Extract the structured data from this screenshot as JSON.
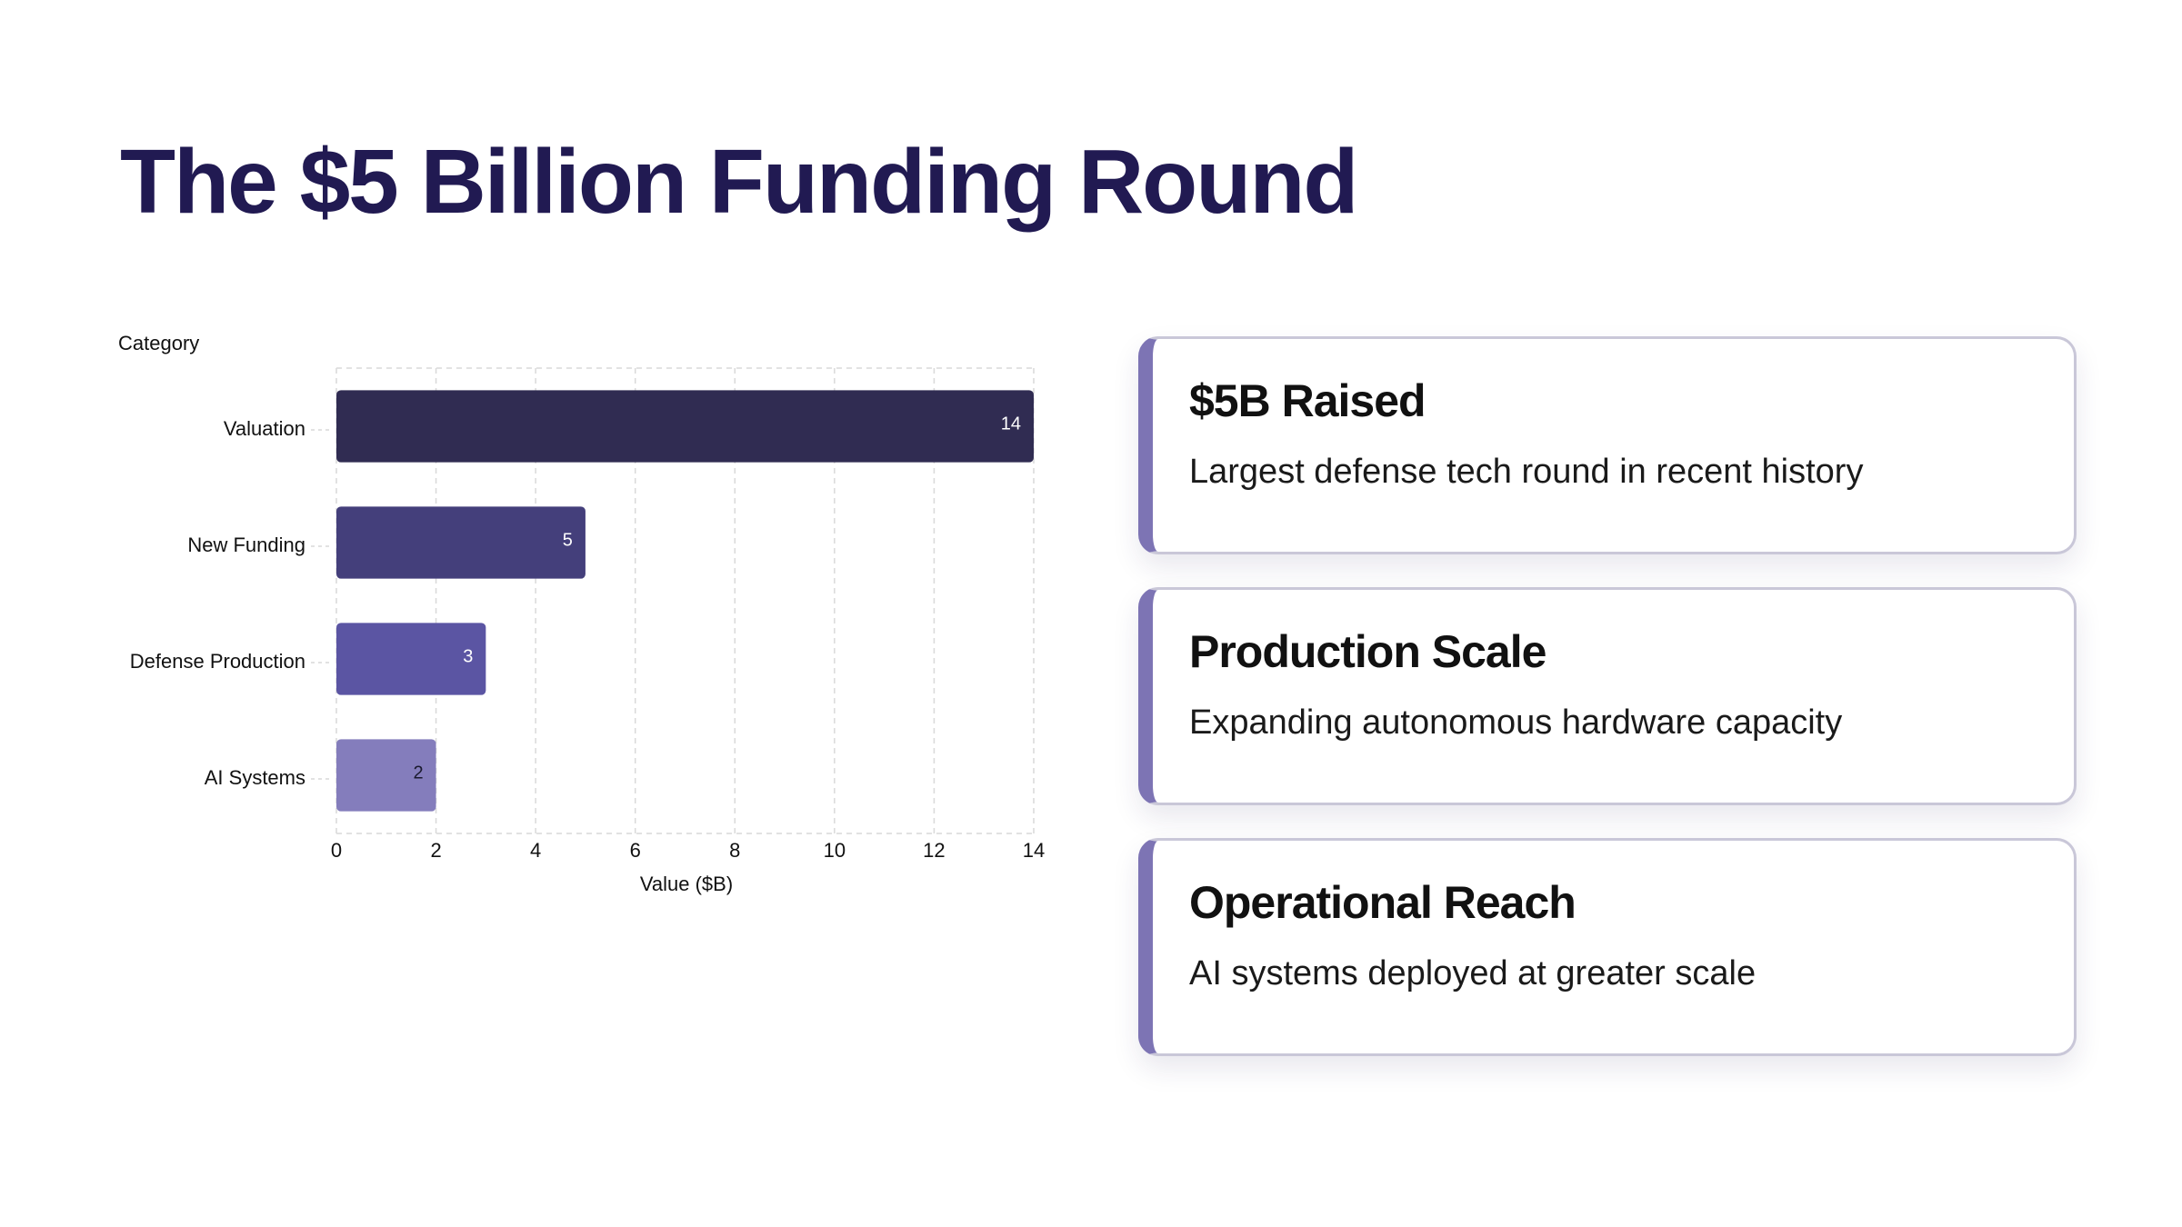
{
  "title": "The $5 Billion Funding Round",
  "chart_data": {
    "type": "bar",
    "orientation": "horizontal",
    "categories": [
      "Valuation",
      "New Funding",
      "Defense Production",
      "AI Systems"
    ],
    "values": [
      14,
      5,
      3,
      2
    ],
    "data_labels": [
      "14",
      "5",
      "3",
      "2"
    ],
    "bar_colors": [
      "#302c52",
      "#443f7b",
      "#5b55a3",
      "#847dbc"
    ],
    "label_colors": [
      "#ffffff",
      "#ffffff",
      "#ffffff",
      "#1a1a2e"
    ],
    "xlabel": "Value ($B)",
    "ylabel": "Category",
    "xlim": [
      0,
      14
    ],
    "xticks": [
      0,
      2,
      4,
      6,
      8,
      10,
      12,
      14
    ],
    "grid": true,
    "legend": "none"
  },
  "cards": [
    {
      "title": "$5B Raised",
      "description": "Largest defense tech round in recent history"
    },
    {
      "title": "Production Scale",
      "description": "Expanding autonomous hardware capacity"
    },
    {
      "title": "Operational Reach",
      "description": "AI systems deployed at greater scale"
    }
  ],
  "colors": {
    "title": "#211a52",
    "card_accent": "#7d74b4",
    "card_border": "#c9c7d8",
    "grid": "#d9d9d9"
  }
}
